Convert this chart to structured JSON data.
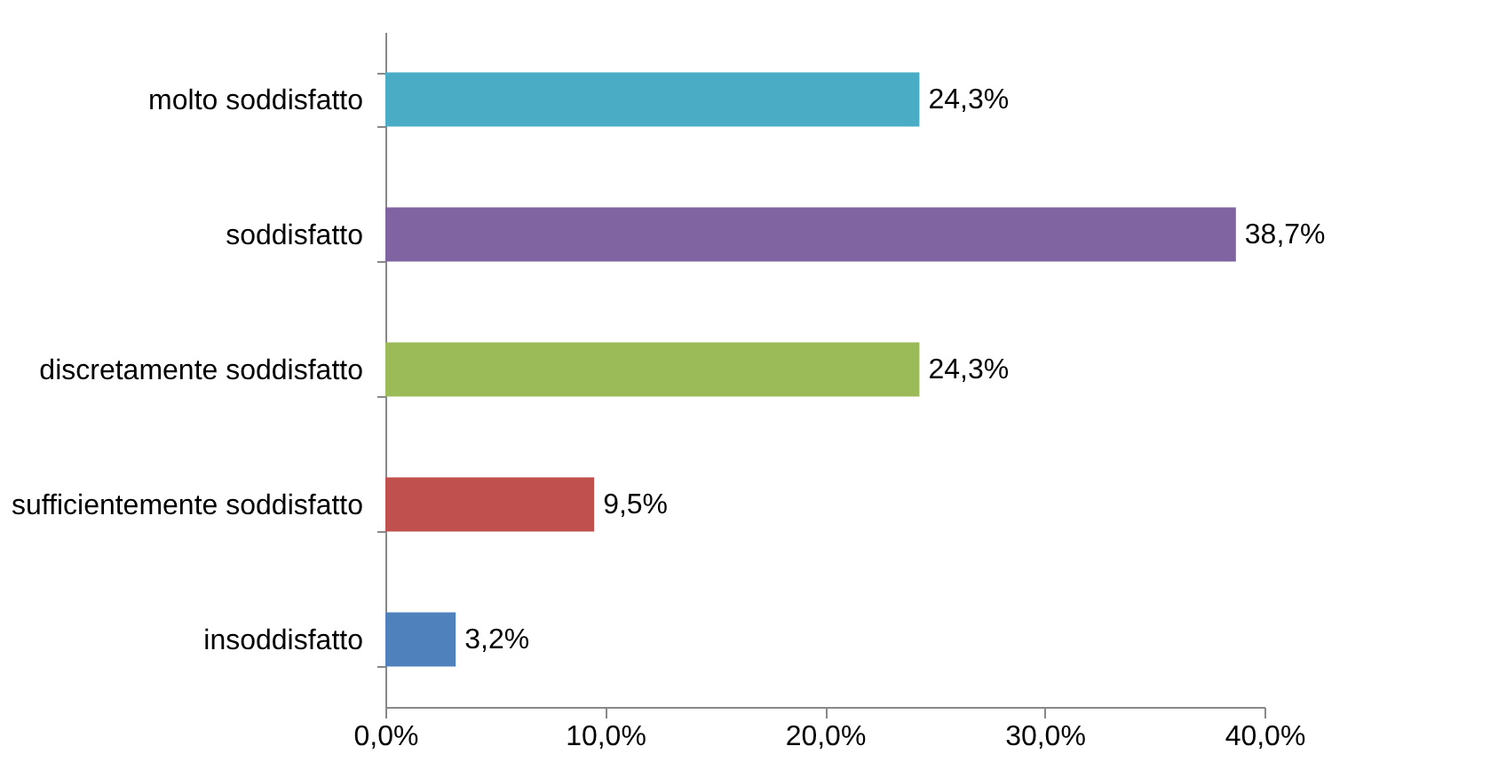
{
  "chart_data": {
    "type": "bar",
    "orientation": "horizontal",
    "categories": [
      "molto soddisfatto",
      "soddisfatto",
      "discretamente soddisfatto",
      "sufficientemente soddisfatto",
      "insoddisfatto"
    ],
    "values": [
      24.3,
      38.7,
      24.3,
      9.5,
      3.2
    ],
    "colors": [
      "#4bacc6",
      "#8064a2",
      "#9bbb59",
      "#c0504d",
      "#4f81bd"
    ],
    "value_labels": [
      "24,3%",
      "38,7%",
      "24,3%",
      "9,5%",
      "3,2%"
    ],
    "xlim": [
      0,
      40
    ],
    "xticks": [
      {
        "value": 0,
        "label": "0,0%"
      },
      {
        "value": 10,
        "label": "10,0%"
      },
      {
        "value": 20,
        "label": "20,0%"
      },
      {
        "value": 30,
        "label": "30,0%"
      },
      {
        "value": 40,
        "label": "40,0%"
      }
    ],
    "grid": false
  }
}
